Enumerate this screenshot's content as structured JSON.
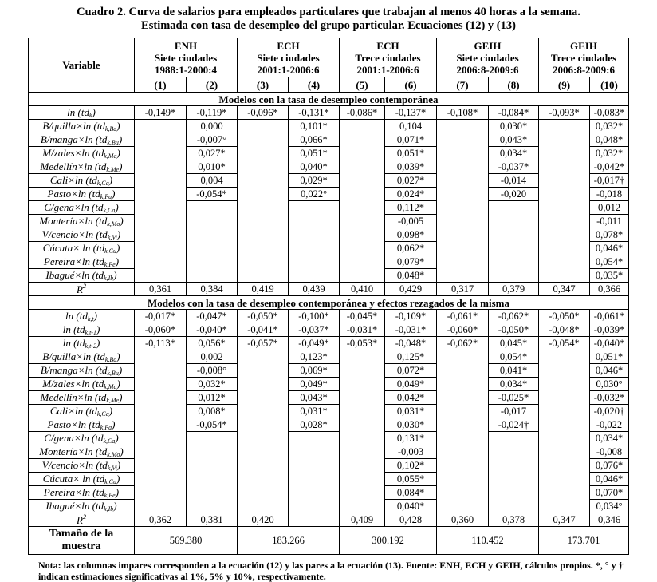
{
  "title": [
    "Cuadro 2. Curva de salarios para empleados particulares que trabajan al menos 40 horas a la semana.",
    "Estimada con tasa de desempleo del grupo particular. Ecuaciones (12) y (13)"
  ],
  "header": {
    "variable": "Variable",
    "groups": [
      {
        "name": "ENH",
        "cities": "Siete ciudades",
        "period": "1988:1-2000:4"
      },
      {
        "name": "ECH",
        "cities": "Siete ciudades",
        "period": "2001:1-2006:6"
      },
      {
        "name": "ECH",
        "cities": "Trece ciudades",
        "period": "2001:1-2006:6"
      },
      {
        "name": "GEIH",
        "cities": "Siete ciudades",
        "period": "2006:8-2009:6"
      },
      {
        "name": "GEIH",
        "cities": "Trece ciudades",
        "period": "2006:8-2009:6"
      }
    ],
    "columns": [
      "(1)",
      "(2)",
      "(3)",
      "(4)",
      "(5)",
      "(6)",
      "(7)",
      "(8)",
      "(9)",
      "(10)"
    ]
  },
  "sections": [
    {
      "title": "Modelos con la tasa de desempleo contemporánea",
      "rows": [
        {
          "label": {
            "pre": "ln (td",
            "sub": "k",
            "post": ")"
          },
          "values": [
            "-0,149*",
            "-0,119*",
            "-0,096*",
            "-0,131*",
            "-0,086*",
            "-0,137*",
            "-0,108*",
            "-0,084*",
            "-0,093*",
            "-0,083*"
          ]
        },
        {
          "label": {
            "pre": "B/quilla×ln (td",
            "sub": "k,Ba",
            "post": ")"
          },
          "values": [
            null,
            "0,000",
            null,
            "0,101*",
            null,
            "0,104",
            null,
            "0,030*",
            null,
            "0,032*"
          ]
        },
        {
          "label": {
            "pre": "B/manga×ln (td",
            "sub": "k,Bu",
            "post": ")"
          },
          "values": [
            null,
            "-0,007°",
            null,
            "0,066*",
            null,
            "0,071*",
            null,
            "0,043*",
            null,
            "0,048*"
          ]
        },
        {
          "label": {
            "pre": "M/zales×ln (td",
            "sub": "k,Ma",
            "post": ")"
          },
          "values": [
            null,
            "0,027*",
            null,
            "0,051*",
            null,
            "0,051*",
            null,
            "0,034*",
            null,
            "0,032*"
          ]
        },
        {
          "label": {
            "pre": "Medellín×ln (td",
            "sub": "k,Me",
            "post": ")"
          },
          "values": [
            null,
            "0,010*",
            null,
            "0,040*",
            null,
            "0,039*",
            null,
            "-0,037*",
            null,
            "-0,042*"
          ]
        },
        {
          "label": {
            "pre": "Cali×ln (td",
            "sub": "k,Ca",
            "post": ")"
          },
          "values": [
            null,
            "0,004",
            null,
            "0,029*",
            null,
            "0,027*",
            null,
            "-0,014",
            null,
            "-0,017†"
          ]
        },
        {
          "label": {
            "pre": "Pasto×ln (td",
            "sub": "k,Pa",
            "post": ")"
          },
          "values": [
            null,
            "-0,054*",
            null,
            "0,022°",
            null,
            "0,024*",
            null,
            "-0,020",
            null,
            "-0,018"
          ]
        },
        {
          "label": {
            "pre": "C/gena×ln (td",
            "sub": "k,Ca",
            "post": ")"
          },
          "values": [
            null,
            null,
            null,
            null,
            null,
            "0,112*",
            null,
            null,
            null,
            "0,012"
          ]
        },
        {
          "label": {
            "pre": "Montería×ln (td",
            "sub": "k,Mo",
            "post": ")"
          },
          "values": [
            null,
            null,
            null,
            null,
            null,
            "-0,005",
            null,
            null,
            null,
            "-0,011"
          ]
        },
        {
          "label": {
            "pre": "V/cencio×ln (td",
            "sub": "k,Vi",
            "post": ")"
          },
          "values": [
            null,
            null,
            null,
            null,
            null,
            "0,098*",
            null,
            null,
            null,
            "0,078*"
          ]
        },
        {
          "label": {
            "pre": "Cúcuta× ln (td",
            "sub": "k,Cu",
            "post": ")"
          },
          "values": [
            null,
            null,
            null,
            null,
            null,
            "0,062*",
            null,
            null,
            null,
            "0,046*"
          ]
        },
        {
          "label": {
            "pre": "Pereira×ln (td",
            "sub": "k,Pe",
            "post": ")"
          },
          "values": [
            null,
            null,
            null,
            null,
            null,
            "0,079*",
            null,
            null,
            null,
            "0,054*"
          ]
        },
        {
          "label": {
            "pre": "Ibagué×ln (td",
            "sub": "k,Ib",
            "post": ")"
          },
          "values": [
            null,
            null,
            null,
            null,
            null,
            "0,048*",
            null,
            null,
            null,
            "0,035*"
          ]
        },
        {
          "label": {
            "pre": "R",
            "sup": "2",
            "post": ""
          },
          "r2": true,
          "values": [
            "0,361",
            "0,384",
            "0,419",
            "0,439",
            "0,410",
            "0,429",
            "0,317",
            "0,379",
            "0,347",
            "0,366"
          ]
        }
      ]
    },
    {
      "title": "Modelos con la tasa de desempleo contemporánea y efectos rezagados de la misma",
      "rows": [
        {
          "label": {
            "pre": "ln (td",
            "sub": "k,t",
            "post": ")"
          },
          "values": [
            "-0,017*",
            "-0,047*",
            "-0,050*",
            "-0,100*",
            "-0,045*",
            "-0,109*",
            "-0,061*",
            "-0,062*",
            "-0,050*",
            "-0,061*"
          ]
        },
        {
          "label": {
            "pre": "ln (td",
            "sub": "k,t-1",
            "post": ")"
          },
          "values": [
            "-0,060*",
            "-0,040*",
            "-0,041*",
            "-0,037*",
            "-0,031*",
            "-0,031*",
            "-0,060*",
            "-0,050*",
            "-0,048*",
            "-0,039*"
          ]
        },
        {
          "label": {
            "pre": "ln (td",
            "sub": "k,t-2",
            "post": ")"
          },
          "values": [
            "-0,113*",
            "0,056*",
            "-0,057*",
            "-0,049*",
            "-0,053*",
            "-0,048*",
            "-0,062*",
            "0,045*",
            "-0,054*",
            "-0,040*"
          ]
        },
        {
          "label": {
            "pre": "B/quilla×ln (td",
            "sub": "k,Ba",
            "post": ")"
          },
          "values": [
            null,
            "0,002",
            null,
            "0,123*",
            null,
            "0,125*",
            null,
            "0,054*",
            null,
            "0,051*"
          ]
        },
        {
          "label": {
            "pre": "B/manga×ln (td",
            "sub": "k,Bu",
            "post": ")"
          },
          "values": [
            null,
            "-0,008°",
            null,
            "0,069*",
            null,
            "0,072*",
            null,
            "0,041*",
            null,
            "0,046*"
          ]
        },
        {
          "label": {
            "pre": "M/zales×ln (td",
            "sub": "k,Ma",
            "post": ")"
          },
          "values": [
            null,
            "0,032*",
            null,
            "0,049*",
            null,
            "0,049*",
            null,
            "0,034*",
            null,
            "0,030°"
          ]
        },
        {
          "label": {
            "pre": "Medellín×ln (td",
            "sub": "k,Me",
            "post": ")"
          },
          "values": [
            null,
            "0,012*",
            null,
            "0,043*",
            null,
            "0,042*",
            null,
            "-0,025*",
            null,
            "-0,032*"
          ]
        },
        {
          "label": {
            "pre": "Cali×ln (td",
            "sub": "k,Ca",
            "post": ")"
          },
          "values": [
            null,
            "0,008*",
            null,
            "0,031*",
            null,
            "0,031*",
            null,
            "-0,017",
            null,
            "-0,020†"
          ]
        },
        {
          "label": {
            "pre": "Pasto×ln (td",
            "sub": "k,Pa",
            "post": ")"
          },
          "values": [
            null,
            "-0,054*",
            null,
            "0,028*",
            null,
            "0,030*",
            null,
            "-0,024†",
            null,
            "-0,022"
          ]
        },
        {
          "label": {
            "pre": "C/gena×ln (td",
            "sub": "k,Ca",
            "post": ")"
          },
          "values": [
            null,
            null,
            null,
            null,
            null,
            "0,131*",
            null,
            null,
            null,
            "0,034*"
          ]
        },
        {
          "label": {
            "pre": "Montería×ln (td",
            "sub": "k,Mo",
            "post": ")"
          },
          "values": [
            null,
            null,
            null,
            null,
            null,
            "-0,003",
            null,
            null,
            null,
            "-0,008"
          ]
        },
        {
          "label": {
            "pre": "V/cencio×ln (td",
            "sub": "k,Vi",
            "post": ")"
          },
          "values": [
            null,
            null,
            null,
            null,
            null,
            "0,102*",
            null,
            null,
            null,
            "0,076*"
          ]
        },
        {
          "label": {
            "pre": "Cúcuta× ln (td",
            "sub": "k,Cu",
            "post": ")"
          },
          "values": [
            null,
            null,
            null,
            null,
            null,
            "0,055*",
            null,
            null,
            null,
            "0,046*"
          ]
        },
        {
          "label": {
            "pre": "Pereira×ln (td",
            "sub": "k,Pe",
            "post": ")"
          },
          "values": [
            null,
            null,
            null,
            null,
            null,
            "0,084*",
            null,
            null,
            null,
            "0,070*"
          ]
        },
        {
          "label": {
            "pre": "Ibagué×ln (td",
            "sub": "k,Ib",
            "post": ")"
          },
          "values": [
            null,
            null,
            null,
            null,
            null,
            "0,040*",
            null,
            null,
            null,
            "0,034°"
          ]
        },
        {
          "label": {
            "pre": "R",
            "sup": "2",
            "post": ""
          },
          "r2": true,
          "values": [
            "0,362",
            "0,381",
            "0,420",
            "",
            "0,409",
            "0,428",
            "0,360",
            "0,378",
            "0,347",
            "0,346"
          ]
        }
      ]
    }
  ],
  "sample": {
    "label": "Tamaño de la muestra",
    "values": [
      "569.380",
      "183.266",
      "300.192",
      "110.452",
      "173.701"
    ]
  },
  "note": "Nota: las columnas impares corresponden a la ecuación (12) y las pares a la ecuación (13). Fuente: ENH, ECH y GEIH, cálculos propios. *, ° y † indican estimaciones significativas al 1%, 5% y 10%, respectivamente."
}
